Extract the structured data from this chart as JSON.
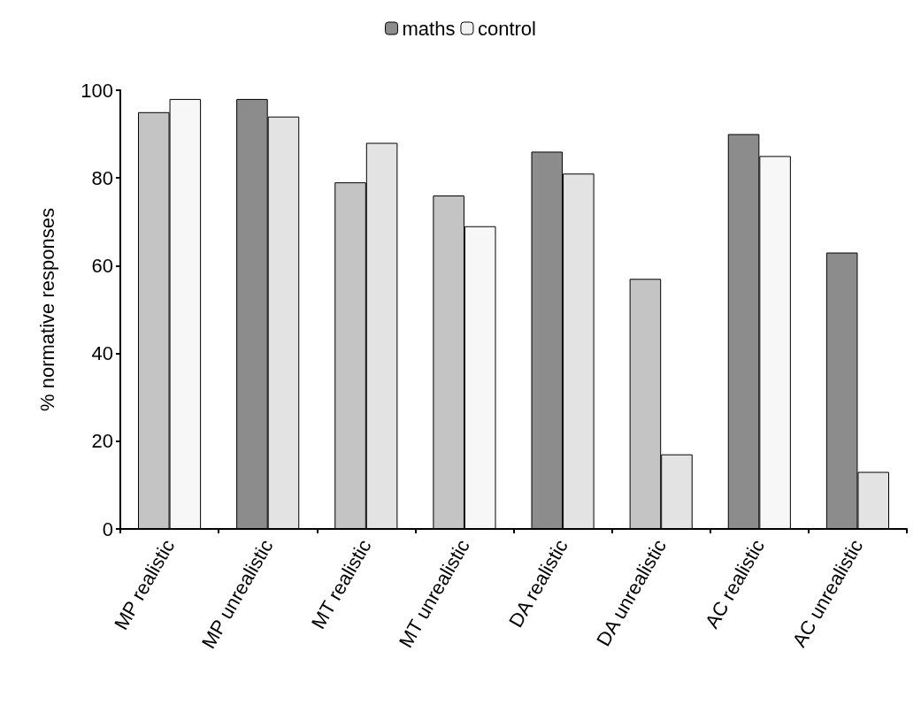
{
  "chart_data": {
    "type": "bar",
    "ylabel": "% normative responses",
    "categories": [
      "MP realistic",
      "MP unrealistic",
      "MT realistic",
      "MT unrealistic",
      "DA realistic",
      "DA unrealistic",
      "AC realistic",
      "AC unrealistic"
    ],
    "series": [
      {
        "name": "maths",
        "color": "#8c8c8c",
        "colors": [
          "#c4c4c4",
          "#8c8c8c",
          "#c4c4c4",
          "#c4c4c4",
          "#8c8c8c",
          "#c4c4c4",
          "#8c8c8c",
          "#8c8c8c"
        ],
        "values": [
          95,
          98,
          79,
          76,
          86,
          57,
          90,
          63
        ]
      },
      {
        "name": "control",
        "color": "#f2f2f2",
        "colors": [
          "#f7f7f7",
          "#e3e3e3",
          "#e3e3e3",
          "#f7f7f7",
          "#e3e3e3",
          "#e3e3e3",
          "#f7f7f7",
          "#e3e3e3"
        ],
        "values": [
          98,
          94,
          88,
          69,
          81,
          17,
          85,
          13
        ]
      }
    ],
    "ylim": [
      0,
      100
    ],
    "yticks": [
      0,
      20,
      40,
      60,
      80,
      100
    ],
    "grid": false,
    "legend": "top"
  }
}
